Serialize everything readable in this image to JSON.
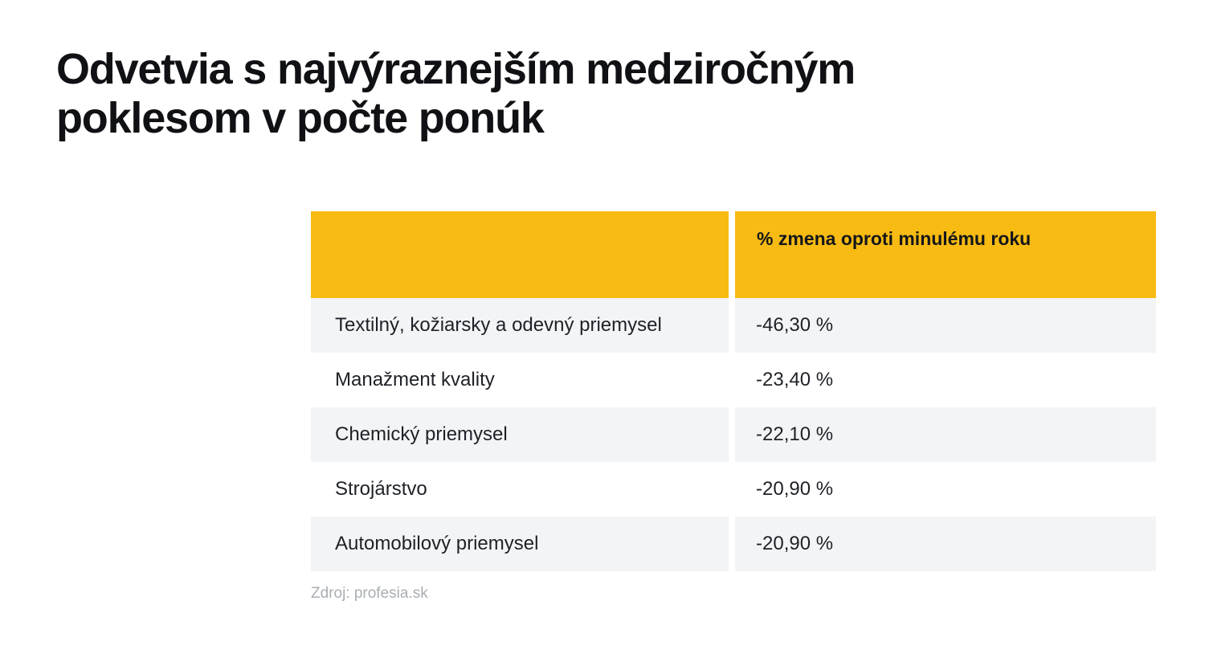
{
  "title": "Odvetvia s najvýraznejším medziročným\npoklesom v počte ponúk",
  "table": {
    "header": {
      "col1": "",
      "col2": "% zmena oproti minulému roku"
    },
    "rows": [
      {
        "label": "Textilný, kožiarsky a odevný priemysel",
        "value": "-46,30 %"
      },
      {
        "label": "Manažment kvality",
        "value": "-23,40 %"
      },
      {
        "label": "Chemický priemysel",
        "value": "-22,10 %"
      },
      {
        "label": "Strojárstvo",
        "value": "-20,90 %"
      },
      {
        "label": "Automobilový priemysel",
        "value": "-20,90 %"
      }
    ]
  },
  "source": "Zdroj: profesia.sk",
  "colors": {
    "accent_yellow": "#F8BB13",
    "row_alt_gray": "#F3F4F6",
    "text_dark": "#1E2127",
    "title_black": "#101114",
    "source_gray": "#A9AEB2",
    "background": "#FFFFFF"
  },
  "chart_data": {
    "type": "table",
    "title": "Odvetvia s najvýraznejším medziročným poklesom v počte ponúk",
    "columns": [
      "",
      "% zmena oproti minulému roku"
    ],
    "categories": [
      "Textilný, kožiarsky a odevný priemysel",
      "Manažment kvality",
      "Chemický priemysel",
      "Strojárstvo",
      "Automobilový priemysel"
    ],
    "values": [
      -46.3,
      -23.4,
      -22.1,
      -20.9,
      -20.9
    ],
    "values_display": [
      "-46,30 %",
      "-23,40 %",
      "-22,10 %",
      "-20,90 %",
      "-20,90 %"
    ],
    "source": "Zdroj: profesia.sk",
    "legend": "off",
    "grid": "off"
  }
}
